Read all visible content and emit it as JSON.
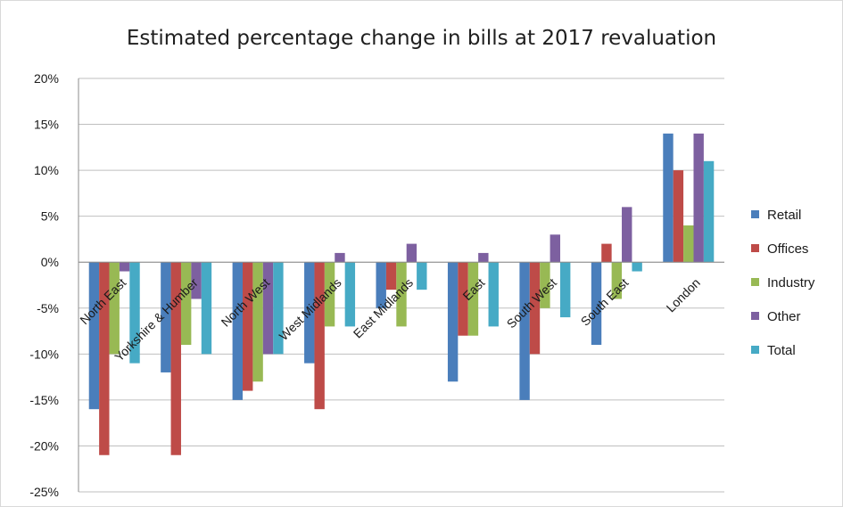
{
  "chart_data": {
    "type": "bar",
    "title": "Estimated percentage change in bills at 2017 revaluation",
    "xlabel": "",
    "ylabel": "",
    "ylim": [
      -25,
      20
    ],
    "yticks": [
      20,
      15,
      10,
      5,
      0,
      -5,
      -10,
      -15,
      -20,
      -25
    ],
    "ytick_labels": [
      "20%",
      "15%",
      "10%",
      "5%",
      "0%",
      "-5%",
      "-10%",
      "-15%",
      "-20%",
      "-25%"
    ],
    "categories": [
      "North East",
      "Yorkshire & Humber",
      "North West",
      "West Midlands",
      "East Midlands",
      "East",
      "South West",
      "South East",
      "London"
    ],
    "series": [
      {
        "name": "Retail",
        "color": "#4a7ebb",
        "values": [
          -16,
          -12,
          -15,
          -11,
          -5,
          -13,
          -15,
          -9,
          14
        ]
      },
      {
        "name": "Offices",
        "color": "#be4b48",
        "values": [
          -21,
          -21,
          -14,
          -16,
          -3,
          -8,
          -10,
          2,
          10
        ]
      },
      {
        "name": "Industry",
        "color": "#98b954",
        "values": [
          -10,
          -9,
          -13,
          -7,
          -7,
          -8,
          -5,
          -4,
          4
        ]
      },
      {
        "name": "Other",
        "color": "#7d60a0",
        "values": [
          -1,
          -4,
          -10,
          1,
          2,
          1,
          3,
          6,
          14
        ]
      },
      {
        "name": "Total",
        "color": "#46aac5",
        "values": [
          -11,
          -10,
          -10,
          -7,
          -3,
          -7,
          -6,
          -1,
          11
        ]
      }
    ],
    "grid": "horizontal",
    "legend_position": "right"
  }
}
